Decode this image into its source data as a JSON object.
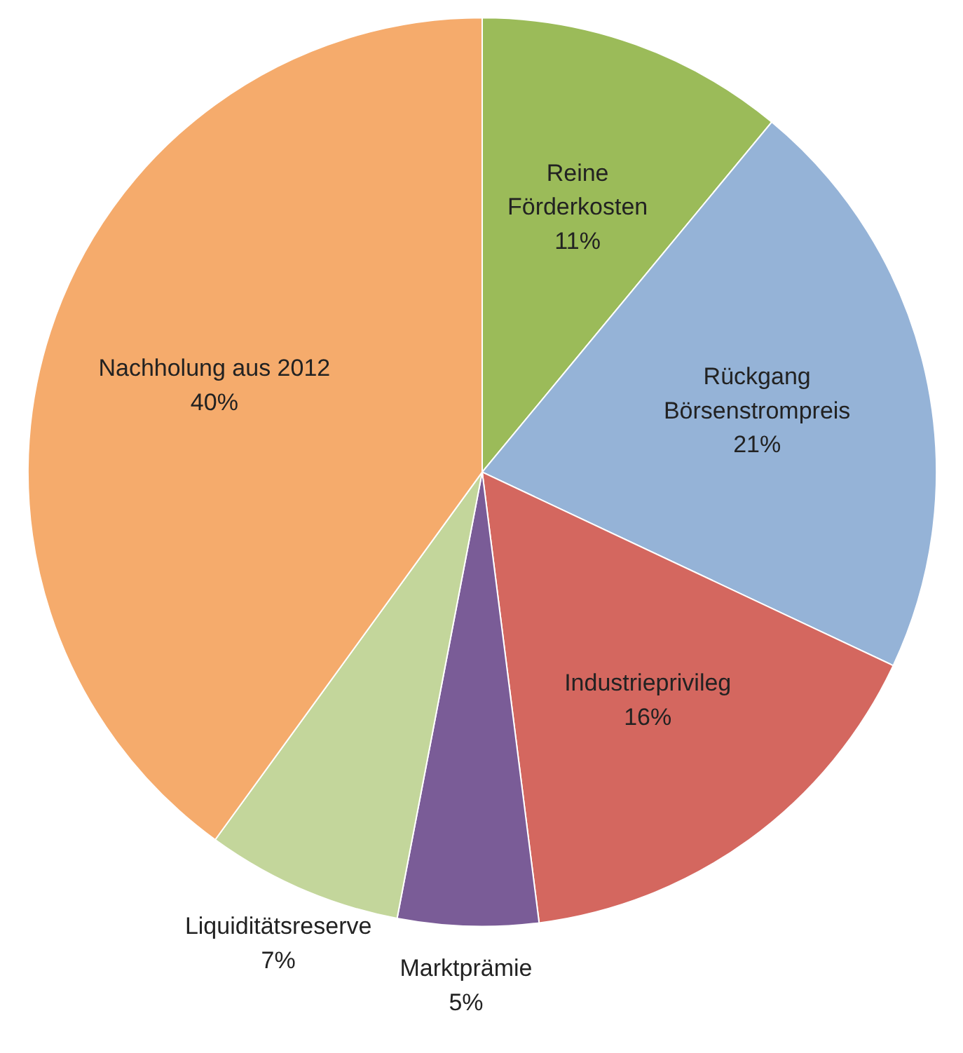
{
  "chart_data": {
    "type": "pie",
    "categories": [
      "Reine Förderkosten",
      "Rückgang Börsenstrompreis",
      "Industrieprivileg",
      "Marktprämie",
      "Liquiditätsreserve",
      "Nachholung aus 2012"
    ],
    "values": [
      11,
      21,
      16,
      5,
      7,
      40
    ],
    "value_labels": [
      "11%",
      "21%",
      "16%",
      "5%",
      "7%",
      "40%"
    ],
    "colors": [
      "#9bbb59",
      "#95b3d7",
      "#d4675f",
      "#7a5c97",
      "#c3d69b",
      "#f5ab6c"
    ],
    "legend": false
  }
}
